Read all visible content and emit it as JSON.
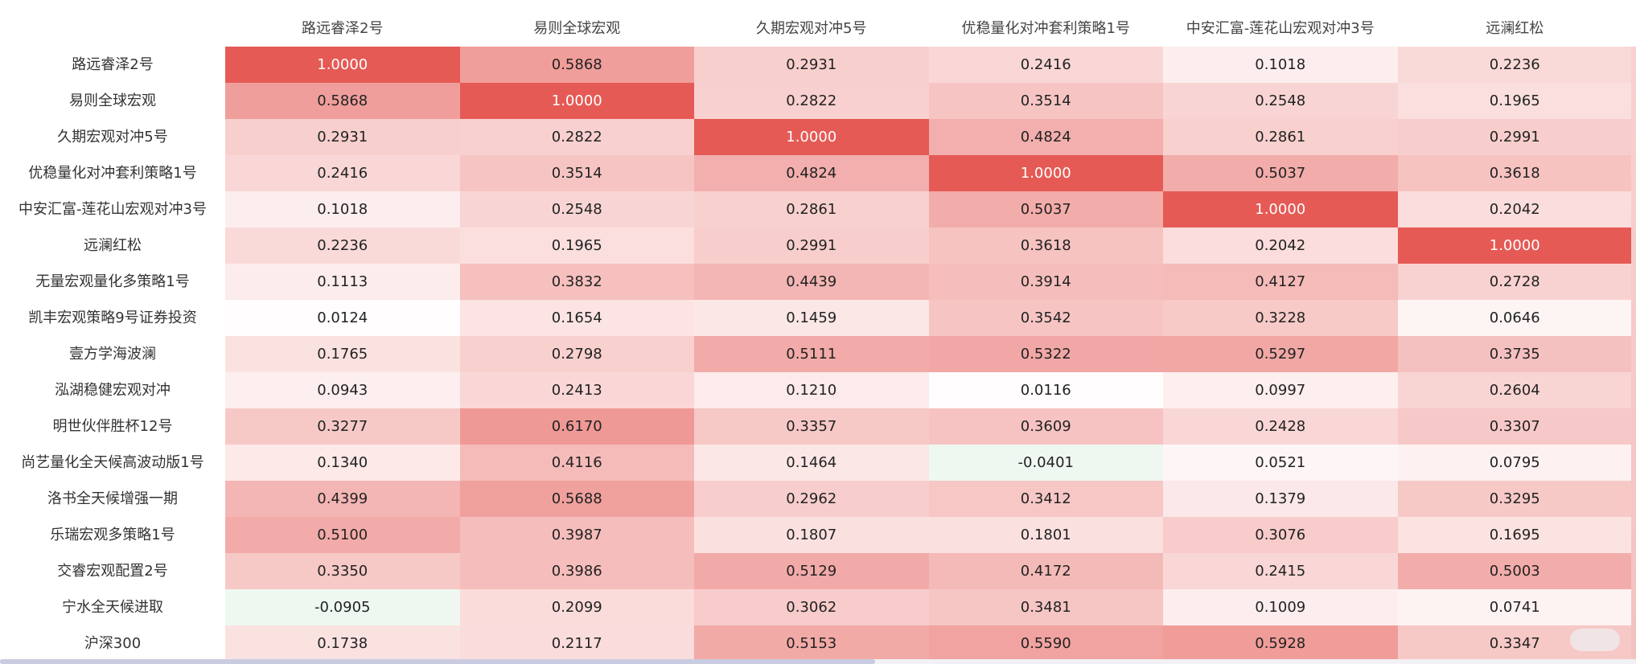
{
  "columns": [
    "路远睿泽2号",
    "易则全球宏观",
    "久期宏观对冲5号",
    "优稳量化对冲套利策略1号",
    "中安汇富-莲花山宏观对冲3号",
    "远澜红松"
  ],
  "rows": [
    {
      "label": "路远睿泽2号",
      "values": [
        "1.0000",
        "0.5868",
        "0.2931",
        "0.2416",
        "0.1018",
        "0.2236"
      ]
    },
    {
      "label": "易则全球宏观",
      "values": [
        "0.5868",
        "1.0000",
        "0.2822",
        "0.3514",
        "0.2548",
        "0.1965"
      ]
    },
    {
      "label": "久期宏观对冲5号",
      "values": [
        "0.2931",
        "0.2822",
        "1.0000",
        "0.4824",
        "0.2861",
        "0.2991"
      ]
    },
    {
      "label": "优稳量化对冲套利策略1号",
      "values": [
        "0.2416",
        "0.3514",
        "0.4824",
        "1.0000",
        "0.5037",
        "0.3618"
      ]
    },
    {
      "label": "中安汇富-莲花山宏观对冲3号",
      "values": [
        "0.1018",
        "0.2548",
        "0.2861",
        "0.5037",
        "1.0000",
        "0.2042"
      ]
    },
    {
      "label": "远澜红松",
      "values": [
        "0.2236",
        "0.1965",
        "0.2991",
        "0.3618",
        "0.2042",
        "1.0000"
      ]
    },
    {
      "label": "无量宏观量化多策略1号",
      "values": [
        "0.1113",
        "0.3832",
        "0.4439",
        "0.3914",
        "0.4127",
        "0.2728"
      ]
    },
    {
      "label": "凯丰宏观策略9号证券投资",
      "values": [
        "0.0124",
        "0.1654",
        "0.1459",
        "0.3542",
        "0.3228",
        "0.0646"
      ]
    },
    {
      "label": "壹方学海波澜",
      "values": [
        "0.1765",
        "0.2798",
        "0.5111",
        "0.5322",
        "0.5297",
        "0.3735"
      ]
    },
    {
      "label": "泓湖稳健宏观对冲",
      "values": [
        "0.0943",
        "0.2413",
        "0.1210",
        "0.0116",
        "0.0997",
        "0.2604"
      ]
    },
    {
      "label": "明世伙伴胜杯12号",
      "values": [
        "0.3277",
        "0.6170",
        "0.3357",
        "0.3609",
        "0.2428",
        "0.3307"
      ]
    },
    {
      "label": "尚艺量化全天候高波动版1号",
      "values": [
        "0.1340",
        "0.4116",
        "0.1464",
        "-0.0401",
        "0.0521",
        "0.0795"
      ]
    },
    {
      "label": "洛书全天候增强一期",
      "values": [
        "0.4399",
        "0.5688",
        "0.2962",
        "0.3412",
        "0.1379",
        "0.3295"
      ]
    },
    {
      "label": "乐瑞宏观多策略1号",
      "values": [
        "0.5100",
        "0.3987",
        "0.1807",
        "0.1801",
        "0.3076",
        "0.1695"
      ]
    },
    {
      "label": "交睿宏观配置2号",
      "values": [
        "0.3350",
        "0.3986",
        "0.5129",
        "0.4172",
        "0.2415",
        "0.5003"
      ]
    },
    {
      "label": "宁水全天候进取",
      "values": [
        "-0.0905",
        "0.2099",
        "0.3062",
        "0.3481",
        "0.1009",
        "0.0741"
      ]
    },
    {
      "label": "沪深300",
      "values": [
        "0.1738",
        "0.2117",
        "0.5153",
        "0.5590",
        "0.5928",
        "0.3347"
      ]
    }
  ],
  "colors": {
    "high": "#e55a55",
    "low": "#ffffff",
    "negative": "#eef8f1",
    "diag_text": "#ffffff"
  }
}
